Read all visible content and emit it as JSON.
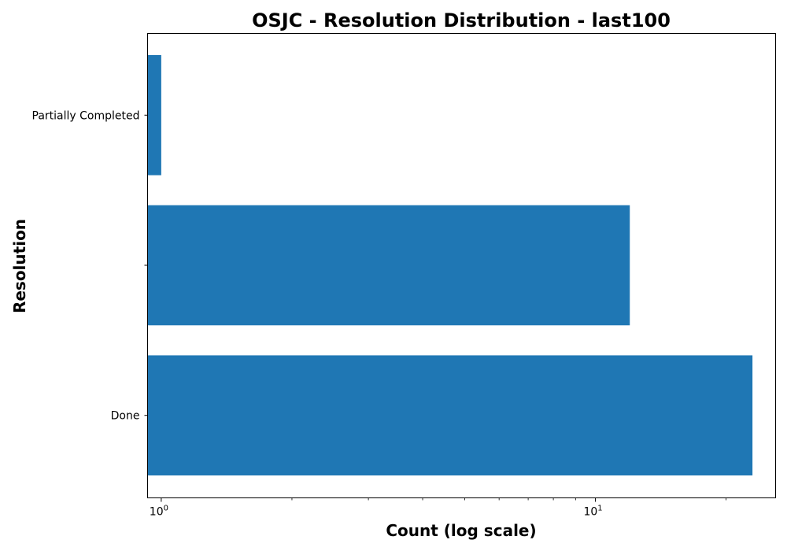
{
  "chart_data": {
    "type": "bar",
    "orientation": "horizontal",
    "title": "OSJC - Resolution Distribution - last100",
    "xlabel": "Count (log scale)",
    "ylabel": "Resolution",
    "xscale": "log",
    "xlim": [
      0.93,
      26
    ],
    "categories": [
      "Done",
      "",
      "Partially Completed"
    ],
    "values": [
      23,
      12,
      1
    ],
    "bar_color": "#1f77b4",
    "xticks": [
      {
        "base": "10",
        "exp": "0",
        "value": 1
      },
      {
        "base": "10",
        "exp": "1",
        "value": 10
      }
    ],
    "grid": false,
    "legend": "none"
  }
}
